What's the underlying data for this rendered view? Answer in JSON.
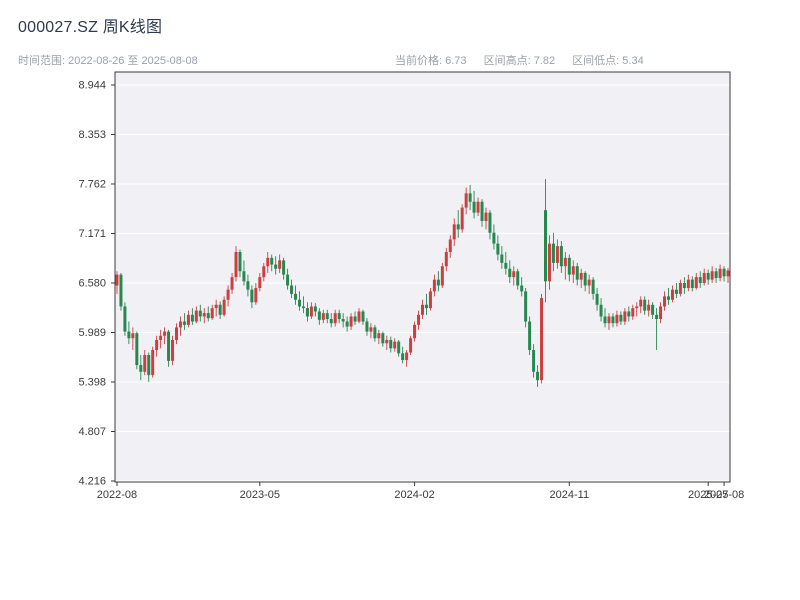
{
  "header": {
    "title": "000027.SZ 周K线图",
    "date_range": "时间范围: 2022-08-26 至 2025-08-08",
    "current_price": "当前价格: 6.73",
    "range_high": "区间高点: 7.82",
    "range_low": "区间低点: 5.34"
  },
  "chart_data": {
    "type": "candlestick",
    "title": "000027.SZ 周K线图",
    "symbol": "000027.SZ",
    "period": "weekly",
    "date_start": "2022-08-26",
    "date_end": "2025-08-08",
    "current_price": 6.73,
    "range_high": 7.82,
    "range_low": 5.34,
    "ylim": [
      4.204,
      9.099
    ],
    "y_ticks": [
      4.216,
      4.807,
      5.398,
      5.989,
      6.58,
      7.171,
      7.762,
      8.353,
      8.944
    ],
    "x_ticks": [
      {
        "index": 0,
        "label": "2022-08"
      },
      {
        "index": 36,
        "label": "2023-05"
      },
      {
        "index": 75,
        "label": "2024-02"
      },
      {
        "index": 114,
        "label": "2024-11"
      },
      {
        "index": 149,
        "label": "2025-07"
      },
      {
        "index": 153,
        "label": "2025-08"
      }
    ],
    "grid": true,
    "up_color": "#cc3f3f",
    "down_color": "#26874f",
    "plot_bg": "#f1f1f5",
    "grid_color": "#ffffff",
    "spine_color": "#3a3a3a",
    "tick_label_color": "#3b3b3b",
    "candles": [
      [
        6.55,
        6.72,
        6.45,
        6.68
      ],
      [
        6.68,
        6.7,
        6.25,
        6.3
      ],
      [
        6.3,
        6.35,
        5.95,
        6.0
      ],
      [
        6.0,
        6.12,
        5.85,
        5.92
      ],
      [
        5.92,
        6.05,
        5.78,
        5.98
      ],
      [
        5.98,
        6.0,
        5.55,
        5.6
      ],
      [
        5.6,
        5.72,
        5.42,
        5.52
      ],
      [
        5.52,
        5.78,
        5.48,
        5.72
      ],
      [
        5.72,
        5.75,
        5.4,
        5.48
      ],
      [
        5.48,
        5.82,
        5.45,
        5.78
      ],
      [
        5.78,
        5.95,
        5.7,
        5.9
      ],
      [
        5.9,
        6.02,
        5.8,
        5.95
      ],
      [
        5.95,
        6.05,
        5.85,
        6.0
      ],
      [
        6.0,
        6.02,
        5.58,
        5.65
      ],
      [
        5.65,
        5.95,
        5.6,
        5.9
      ],
      [
        5.9,
        6.1,
        5.85,
        6.05
      ],
      [
        6.05,
        6.18,
        5.95,
        6.12
      ],
      [
        6.12,
        6.22,
        6.02,
        6.08
      ],
      [
        6.08,
        6.25,
        6.05,
        6.2
      ],
      [
        6.2,
        6.28,
        6.08,
        6.12
      ],
      [
        6.12,
        6.3,
        6.1,
        6.25
      ],
      [
        6.25,
        6.32,
        6.12,
        6.18
      ],
      [
        6.18,
        6.28,
        6.1,
        6.22
      ],
      [
        6.22,
        6.3,
        6.12,
        6.16
      ],
      [
        6.16,
        6.32,
        6.14,
        6.28
      ],
      [
        6.28,
        6.38,
        6.18,
        6.32
      ],
      [
        6.32,
        6.36,
        6.15,
        6.2
      ],
      [
        6.2,
        6.42,
        6.18,
        6.38
      ],
      [
        6.38,
        6.55,
        6.3,
        6.5
      ],
      [
        6.5,
        6.7,
        6.45,
        6.65
      ],
      [
        6.65,
        7.02,
        6.6,
        6.95
      ],
      [
        6.95,
        6.98,
        6.65,
        6.72
      ],
      [
        6.72,
        6.85,
        6.55,
        6.6
      ],
      [
        6.6,
        6.68,
        6.42,
        6.5
      ],
      [
        6.5,
        6.55,
        6.28,
        6.35
      ],
      [
        6.35,
        6.58,
        6.32,
        6.52
      ],
      [
        6.52,
        6.7,
        6.48,
        6.65
      ],
      [
        6.65,
        6.82,
        6.6,
        6.78
      ],
      [
        6.78,
        6.95,
        6.7,
        6.88
      ],
      [
        6.88,
        6.92,
        6.72,
        6.8
      ],
      [
        6.8,
        6.9,
        6.68,
        6.75
      ],
      [
        6.75,
        6.92,
        6.7,
        6.85
      ],
      [
        6.85,
        6.88,
        6.62,
        6.68
      ],
      [
        6.68,
        6.75,
        6.5,
        6.55
      ],
      [
        6.55,
        6.62,
        6.4,
        6.45
      ],
      [
        6.45,
        6.55,
        6.32,
        6.38
      ],
      [
        6.38,
        6.48,
        6.25,
        6.3
      ],
      [
        6.3,
        6.42,
        6.22,
        6.28
      ],
      [
        6.28,
        6.35,
        6.12,
        6.18
      ],
      [
        6.18,
        6.35,
        6.15,
        6.3
      ],
      [
        6.3,
        6.34,
        6.18,
        6.24
      ],
      [
        6.24,
        6.28,
        6.08,
        6.14
      ],
      [
        6.14,
        6.26,
        6.1,
        6.22
      ],
      [
        6.22,
        6.26,
        6.1,
        6.15
      ],
      [
        6.15,
        6.22,
        6.05,
        6.1
      ],
      [
        6.1,
        6.26,
        6.06,
        6.22
      ],
      [
        6.22,
        6.26,
        6.1,
        6.15
      ],
      [
        6.15,
        6.22,
        6.05,
        6.12
      ],
      [
        6.12,
        6.18,
        6.0,
        6.06
      ],
      [
        6.06,
        6.22,
        6.02,
        6.18
      ],
      [
        6.18,
        6.24,
        6.08,
        6.12
      ],
      [
        6.12,
        6.28,
        6.1,
        6.24
      ],
      [
        6.24,
        6.26,
        6.08,
        6.12
      ],
      [
        6.12,
        6.16,
        5.95,
        6.0
      ],
      [
        6.0,
        6.1,
        5.92,
        6.05
      ],
      [
        6.05,
        6.08,
        5.88,
        5.92
      ],
      [
        5.92,
        6.02,
        5.85,
        5.98
      ],
      [
        5.98,
        6.0,
        5.82,
        5.86
      ],
      [
        5.86,
        5.95,
        5.78,
        5.9
      ],
      [
        5.9,
        5.94,
        5.75,
        5.8
      ],
      [
        5.8,
        5.92,
        5.76,
        5.88
      ],
      [
        5.88,
        5.9,
        5.7,
        5.74
      ],
      [
        5.74,
        5.82,
        5.62,
        5.66
      ],
      [
        5.66,
        5.78,
        5.58,
        5.75
      ],
      [
        5.75,
        5.95,
        5.72,
        5.92
      ],
      [
        5.92,
        6.12,
        5.88,
        6.08
      ],
      [
        6.08,
        6.25,
        6.02,
        6.2
      ],
      [
        6.2,
        6.38,
        6.15,
        6.32
      ],
      [
        6.32,
        6.45,
        6.2,
        6.28
      ],
      [
        6.28,
        6.52,
        6.25,
        6.48
      ],
      [
        6.48,
        6.68,
        6.42,
        6.62
      ],
      [
        6.62,
        6.72,
        6.48,
        6.55
      ],
      [
        6.55,
        6.82,
        6.52,
        6.78
      ],
      [
        6.78,
        7.0,
        6.72,
        6.95
      ],
      [
        6.95,
        7.15,
        6.88,
        7.1
      ],
      [
        7.1,
        7.35,
        7.02,
        7.28
      ],
      [
        7.28,
        7.45,
        7.12,
        7.22
      ],
      [
        7.22,
        7.52,
        7.18,
        7.48
      ],
      [
        7.48,
        7.72,
        7.4,
        7.65
      ],
      [
        7.65,
        7.75,
        7.45,
        7.55
      ],
      [
        7.55,
        7.68,
        7.35,
        7.42
      ],
      [
        7.42,
        7.6,
        7.38,
        7.55
      ],
      [
        7.55,
        7.58,
        7.25,
        7.32
      ],
      [
        7.32,
        7.48,
        7.22,
        7.42
      ],
      [
        7.42,
        7.45,
        7.1,
        7.18
      ],
      [
        7.18,
        7.28,
        6.98,
        7.05
      ],
      [
        7.05,
        7.15,
        6.85,
        6.92
      ],
      [
        6.92,
        7.02,
        6.75,
        6.82
      ],
      [
        6.82,
        6.95,
        6.68,
        6.75
      ],
      [
        6.75,
        6.85,
        6.58,
        6.65
      ],
      [
        6.65,
        6.78,
        6.55,
        6.72
      ],
      [
        6.72,
        6.75,
        6.5,
        6.55
      ],
      [
        6.55,
        6.65,
        6.42,
        6.48
      ],
      [
        6.48,
        6.52,
        6.05,
        6.12
      ],
      [
        6.12,
        6.18,
        5.72,
        5.78
      ],
      [
        5.78,
        5.85,
        5.45,
        5.52
      ],
      [
        5.52,
        5.6,
        5.34,
        5.42
      ],
      [
        5.42,
        6.45,
        5.38,
        6.4
      ],
      [
        7.45,
        7.82,
        6.35,
        6.6
      ],
      [
        6.6,
        7.15,
        6.5,
        7.05
      ],
      [
        7.05,
        7.18,
        6.72,
        6.82
      ],
      [
        6.82,
        7.1,
        6.75,
        7.02
      ],
      [
        7.02,
        7.08,
        6.7,
        6.78
      ],
      [
        6.78,
        6.95,
        6.62,
        6.88
      ],
      [
        6.88,
        6.92,
        6.6,
        6.68
      ],
      [
        6.68,
        6.85,
        6.58,
        6.78
      ],
      [
        6.78,
        6.82,
        6.55,
        6.62
      ],
      [
        6.62,
        6.75,
        6.52,
        6.7
      ],
      [
        6.7,
        6.72,
        6.48,
        6.55
      ],
      [
        6.55,
        6.68,
        6.45,
        6.62
      ],
      [
        6.62,
        6.65,
        6.38,
        6.45
      ],
      [
        6.45,
        6.52,
        6.25,
        6.32
      ],
      [
        6.32,
        6.4,
        6.12,
        6.18
      ],
      [
        6.18,
        6.28,
        6.05,
        6.1
      ],
      [
        6.1,
        6.22,
        6.02,
        6.18
      ],
      [
        6.18,
        6.22,
        6.05,
        6.1
      ],
      [
        6.1,
        6.25,
        6.06,
        6.2
      ],
      [
        6.2,
        6.24,
        6.08,
        6.12
      ],
      [
        6.12,
        6.28,
        6.08,
        6.24
      ],
      [
        6.24,
        6.3,
        6.12,
        6.18
      ],
      [
        6.18,
        6.32,
        6.14,
        6.28
      ],
      [
        6.28,
        6.35,
        6.18,
        6.3
      ],
      [
        6.3,
        6.42,
        6.22,
        6.38
      ],
      [
        6.38,
        6.42,
        6.2,
        6.25
      ],
      [
        6.25,
        6.38,
        6.18,
        6.32
      ],
      [
        6.32,
        6.35,
        6.15,
        6.2
      ],
      [
        6.2,
        6.28,
        5.78,
        6.15
      ],
      [
        6.15,
        6.35,
        6.1,
        6.3
      ],
      [
        6.3,
        6.48,
        6.25,
        6.42
      ],
      [
        6.42,
        6.52,
        6.32,
        6.38
      ],
      [
        6.38,
        6.55,
        6.35,
        6.5
      ],
      [
        6.5,
        6.58,
        6.4,
        6.45
      ],
      [
        6.45,
        6.62,
        6.42,
        6.58
      ],
      [
        6.58,
        6.65,
        6.45,
        6.52
      ],
      [
        6.52,
        6.68,
        6.48,
        6.62
      ],
      [
        6.62,
        6.66,
        6.48,
        6.52
      ],
      [
        6.52,
        6.7,
        6.5,
        6.65
      ],
      [
        6.65,
        6.72,
        6.52,
        6.58
      ],
      [
        6.58,
        6.75,
        6.55,
        6.7
      ],
      [
        6.7,
        6.74,
        6.56,
        6.62
      ],
      [
        6.62,
        6.78,
        6.58,
        6.72
      ],
      [
        6.72,
        6.76,
        6.58,
        6.64
      ],
      [
        6.64,
        6.8,
        6.6,
        6.75
      ],
      [
        6.75,
        6.78,
        6.6,
        6.66
      ],
      [
        6.66,
        6.76,
        6.58,
        6.73
      ]
    ]
  }
}
